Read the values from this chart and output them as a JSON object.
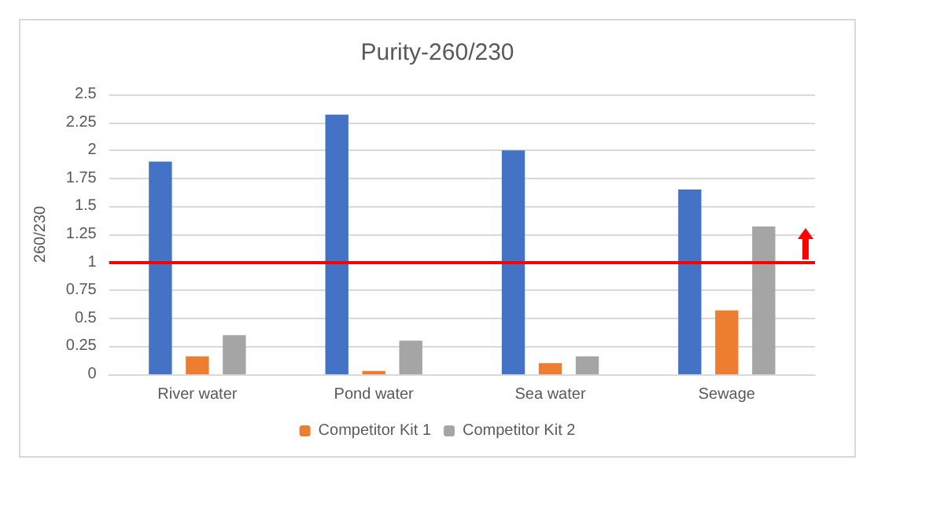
{
  "chart_data": {
    "type": "bar",
    "title": "Purity-260/230",
    "ylabel": "260/230",
    "categories": [
      "River water",
      "Pond water",
      "Sea water",
      "Sewage"
    ],
    "series": [
      {
        "color": "#4472c4",
        "values": [
          1.9,
          2.32,
          2.0,
          1.65
        ]
      },
      {
        "name": "Competitor Kit 1",
        "color": "#ed7d31",
        "values": [
          0.16,
          0.03,
          0.1,
          0.57
        ]
      },
      {
        "name": "Competitor Kit 2",
        "color": "#a5a5a5",
        "values": [
          0.35,
          0.3,
          0.16,
          1.32
        ]
      }
    ],
    "ylim": [
      0,
      2.5
    ],
    "yticks": [
      0,
      0.25,
      0.5,
      0.75,
      1,
      1.25,
      1.5,
      1.75,
      2,
      2.25,
      2.5
    ],
    "ref_lines": [
      {
        "axis": "y",
        "value": 1,
        "color": "#ff0000"
      }
    ],
    "grid": "y",
    "legend": "bottom"
  }
}
